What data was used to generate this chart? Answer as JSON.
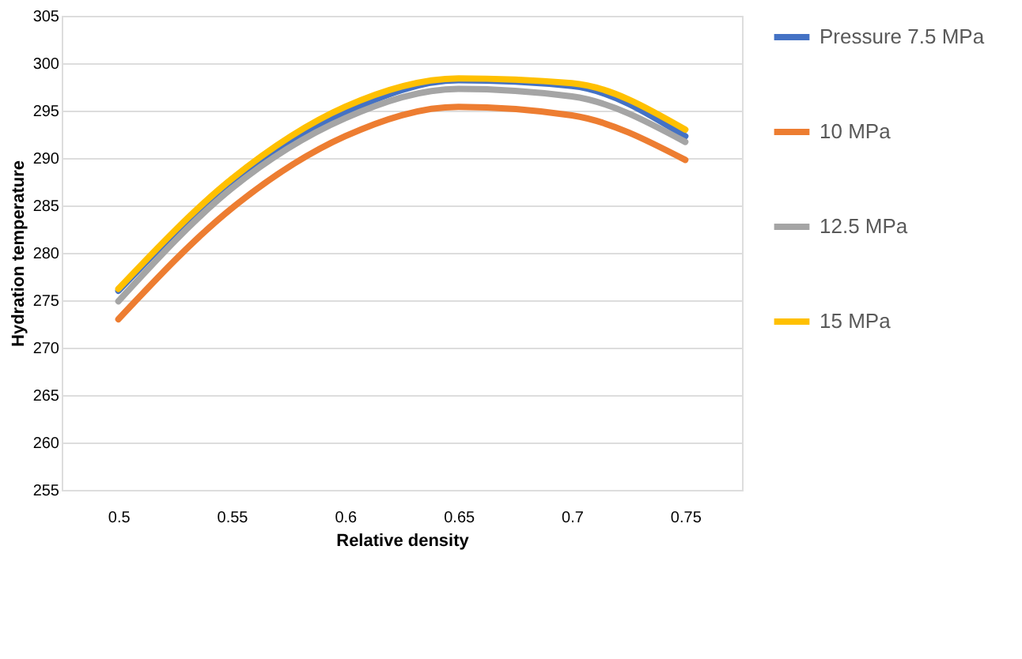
{
  "chart_data": {
    "type": "line",
    "xlabel": "Relative density",
    "ylabel": "Hydration temperature",
    "categories": [
      "0.5",
      "0.55",
      "0.6",
      "0.65",
      "0.7",
      "0.75"
    ],
    "series": [
      {
        "name": "Pressure 7.5 MPa",
        "color": "#4472c4",
        "values": [
          276,
          287.5,
          294.8,
          298.2,
          297.6,
          292.3
        ]
      },
      {
        "name": "10 MPa",
        "color": "#ed7d31",
        "values": [
          273,
          284.7,
          292.3,
          295.4,
          294.5,
          289.8
        ]
      },
      {
        "name": "12.5 MPa",
        "color": "#a5a5a5",
        "values": [
          274.9,
          286.8,
          294.2,
          297.3,
          296.5,
          291.7
        ]
      },
      {
        "name": "15 MPa",
        "color": "#ffc000",
        "values": [
          276.2,
          287.8,
          295.4,
          298.4,
          297.9,
          293
        ]
      }
    ],
    "ylim": [
      255,
      305
    ],
    "yticks": [
      255,
      260,
      265,
      270,
      275,
      280,
      285,
      290,
      295,
      300,
      305
    ],
    "grid": "y",
    "legend": "right",
    "marker": "none",
    "line_style": "solid"
  }
}
